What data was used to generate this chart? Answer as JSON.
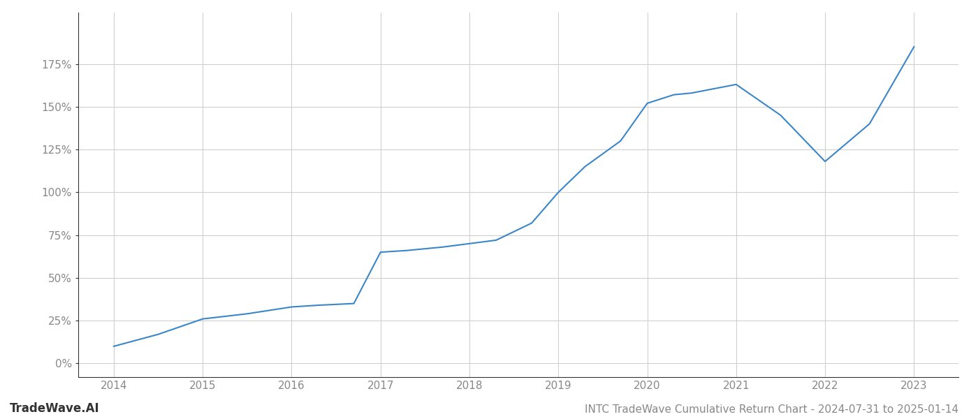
{
  "x": [
    2014,
    2014.5,
    2015,
    2015.5,
    2016,
    2016.3,
    2016.7,
    2017,
    2017.3,
    2017.7,
    2018,
    2018.3,
    2018.7,
    2019,
    2019.3,
    2019.7,
    2020,
    2020.3,
    2020.5,
    2021,
    2021.5,
    2022,
    2022.5,
    2023
  ],
  "y": [
    10,
    17,
    26,
    29,
    33,
    34,
    35,
    65,
    66,
    68,
    70,
    72,
    82,
    100,
    115,
    130,
    152,
    157,
    158,
    163,
    145,
    118,
    140,
    185
  ],
  "line_color": "#3a86c8",
  "line_width": 1.5,
  "title": "INTC TradeWave Cumulative Return Chart - 2024-07-31 to 2025-01-14",
  "watermark": "TradeWave.AI",
  "xlim": [
    2013.6,
    2023.5
  ],
  "ylim": [
    -8,
    205
  ],
  "yticks": [
    0,
    25,
    50,
    75,
    100,
    125,
    150,
    175
  ],
  "xticks": [
    2014,
    2015,
    2016,
    2017,
    2018,
    2019,
    2020,
    2021,
    2022,
    2023
  ],
  "background_color": "#ffffff",
  "grid_color": "#cccccc",
  "title_fontsize": 11,
  "tick_fontsize": 11,
  "watermark_fontsize": 12
}
